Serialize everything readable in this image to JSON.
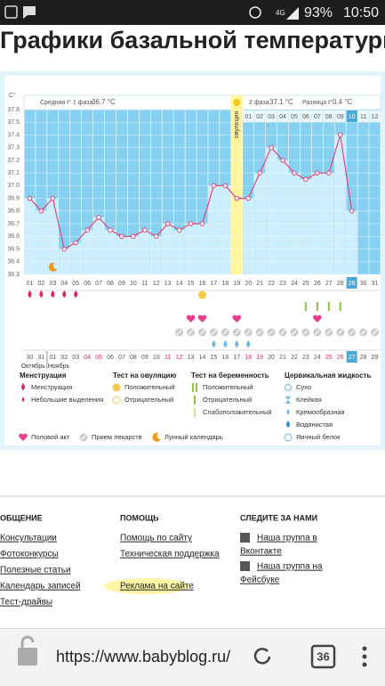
{
  "status_bar": {
    "network": "4G",
    "battery": "93%",
    "time": "10:50"
  },
  "header": {
    "title": "Графики базальной температуры"
  },
  "chart_data": {
    "type": "line",
    "y_unit": "C°",
    "phase1_label": "Средняя t° 1 фаза",
    "phase1_value": "36.7 °C",
    "phase2_label": "2 фаза",
    "phase2_value": "37.1 °C",
    "diff_label": "Разница t°",
    "diff_value": "0.4 °C",
    "ovulation_label": "овуляция",
    "ovulation_day": 19,
    "categories": [
      "01",
      "02",
      "03",
      "04",
      "05",
      "06",
      "07",
      "08",
      "09",
      "10",
      "11",
      "12",
      "13",
      "14",
      "15",
      "16",
      "17",
      "18",
      "19",
      "20",
      "21",
      "22",
      "23",
      "24",
      "25",
      "26",
      "27",
      "28",
      "29",
      "30",
      "31"
    ],
    "values": [
      36.9,
      36.8,
      36.9,
      36.5,
      36.55,
      36.65,
      36.75,
      36.65,
      36.6,
      36.6,
      36.65,
      36.6,
      36.7,
      36.65,
      36.7,
      36.7,
      37.0,
      37.0,
      36.9,
      36.9,
      37.1,
      37.3,
      37.2,
      37.1,
      37.05,
      37.1,
      37.1,
      37.4,
      36.8,
      null,
      null
    ],
    "ylim": [
      36.3,
      37.6
    ],
    "yticks": [
      36.3,
      36.4,
      36.5,
      36.6,
      36.7,
      36.8,
      36.9,
      {
        "value": 37,
        "label": "37.0"
      },
      37.1,
      37.2,
      37.3,
      37.4,
      37.5,
      37.6
    ],
    "grid": true,
    "color": "#e0457b",
    "bar_color": "#cdeefc",
    "plot_color": "#86d0f2",
    "phase2_days": [
      "01",
      "02",
      "03",
      "04",
      "05",
      "06",
      "07",
      "08",
      "09",
      "10",
      "11",
      "12"
    ],
    "today_index": 28,
    "dates": [
      "30",
      "31",
      "01",
      "02",
      "03",
      "04",
      "05",
      "06",
      "07",
      "08",
      "09",
      "10",
      "11",
      "12",
      "13",
      "14",
      "15",
      "16",
      "17",
      "18",
      "19",
      "20",
      "21",
      "22",
      "23",
      "24",
      "25",
      "26",
      "27",
      "28",
      "29"
    ],
    "weekend_indices": [
      5,
      6,
      12,
      13,
      19,
      20,
      26,
      27
    ],
    "months": [
      "Октябрь",
      "Ноябрь"
    ],
    "markers": {
      "menstruation": [
        1,
        2,
        3,
        4,
        5
      ],
      "ovulation_positive": [
        16
      ],
      "pregnancy_positive": [
        25,
        26,
        27,
        28
      ],
      "intercourse": [
        15,
        16,
        19,
        26
      ],
      "medication": [
        14,
        15,
        16,
        17,
        18,
        19,
        20,
        21,
        22,
        23,
        24,
        25,
        26,
        27,
        28,
        29,
        30,
        31
      ],
      "cervical_watery": [
        17,
        18,
        19,
        20
      ],
      "lunar": [
        3
      ]
    }
  },
  "legend": {
    "groups": [
      {
        "title": "Менструация",
        "items": [
          "Менструация",
          "Небольшие выделения"
        ]
      },
      {
        "title": "Тест на овуляцию",
        "items": [
          "Положительный",
          "Отрицательный"
        ]
      },
      {
        "title": "Тест на беременность",
        "items": [
          "Положительный",
          "Отрицательный",
          "Слабоположительный"
        ]
      },
      {
        "title": "Цервикальная жидкость",
        "items": [
          "Сухо",
          "Клейкая",
          "Кремообразная",
          "Водянистая",
          "Яичный белок"
        ]
      }
    ],
    "extra": [
      "Половой акт",
      "Прием лекарств",
      "Лунный календарь"
    ]
  },
  "footer": {
    "columns": [
      {
        "title": "ОБЩЕНИЕ",
        "links": [
          "Консультации",
          "Фотоконкурсы",
          "Полезные статьи",
          "Календарь записей",
          "Тест-драйвы"
        ]
      },
      {
        "title": "ПОМОЩЬ",
        "links": [
          "Помощь по сайту",
          "Техническая поддержка",
          "Реклама на сайте"
        ]
      },
      {
        "title": "СЛЕДИТЕ ЗА НАМИ",
        "links": [
          [
            "Наша группа в",
            "Вконтакте"
          ],
          [
            "Наша группа на",
            "Фейсбуке"
          ]
        ]
      }
    ]
  },
  "browser": {
    "url": "https://www.babyblog.ru/",
    "tabs": "36"
  }
}
